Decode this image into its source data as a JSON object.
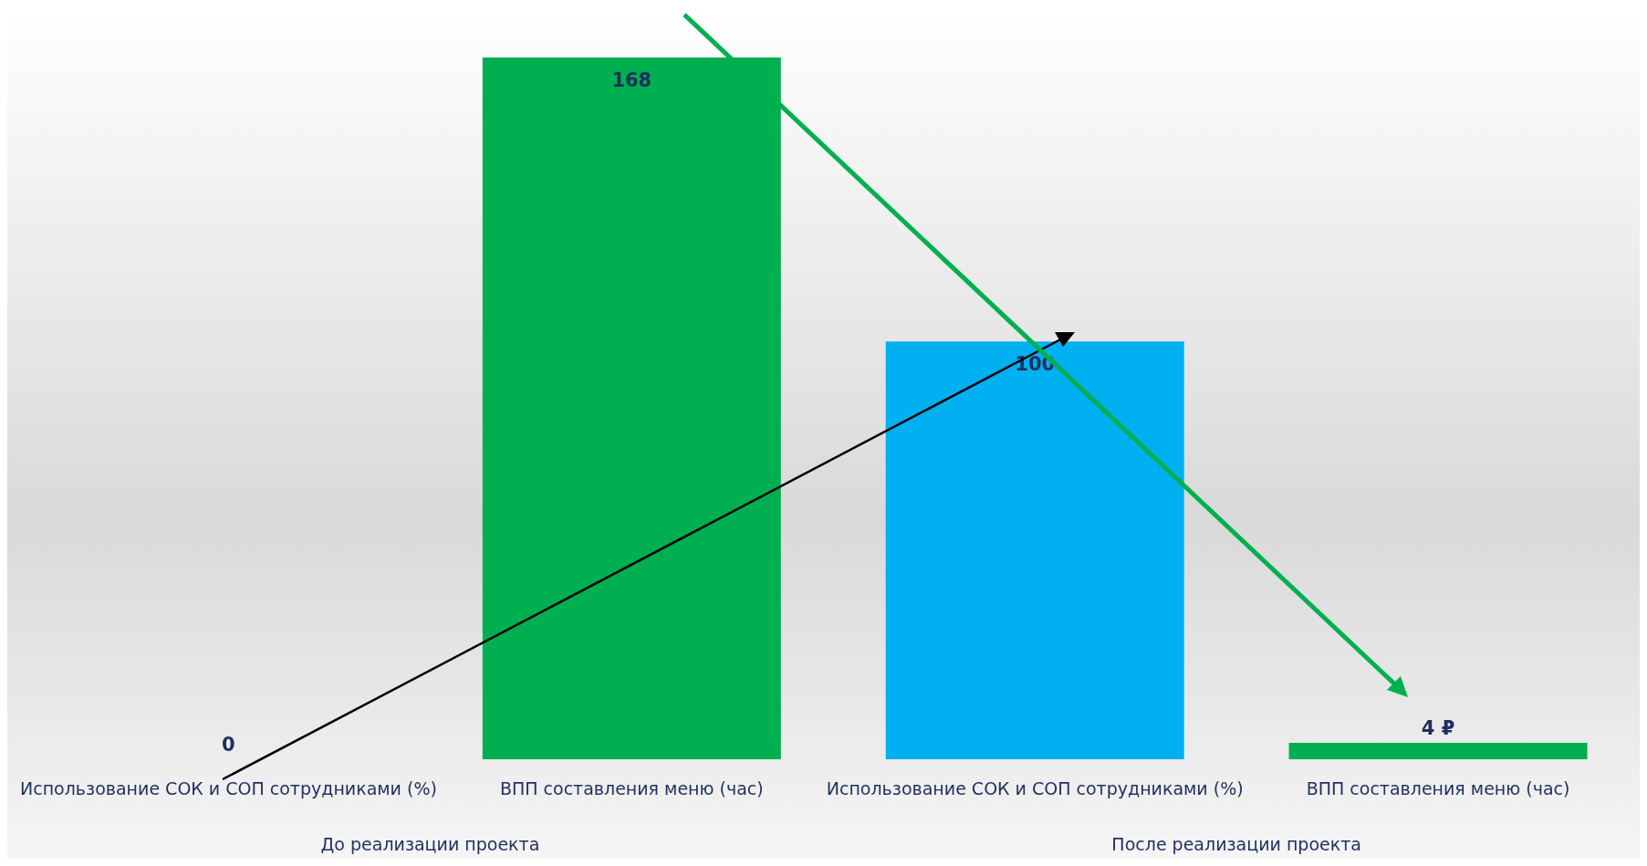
{
  "chart_data": {
    "type": "bar",
    "categories": [
      "Использование СОК и СОП сотрудниками (%)",
      "ВПП составления меню (час)",
      "Использование СОК и СОП сотрудниками (%)",
      "ВПП составления меню (час)"
    ],
    "values": [
      0,
      168,
      100,
      4
    ],
    "colors": [
      "#00b0f0",
      "#00b050",
      "#00b0f0",
      "#00b050"
    ],
    "value_labels": [
      "0",
      "168",
      "100",
      "4 ₽"
    ],
    "annotations": [
      "До реализации проекта",
      "После реализации проекта"
    ]
  }
}
